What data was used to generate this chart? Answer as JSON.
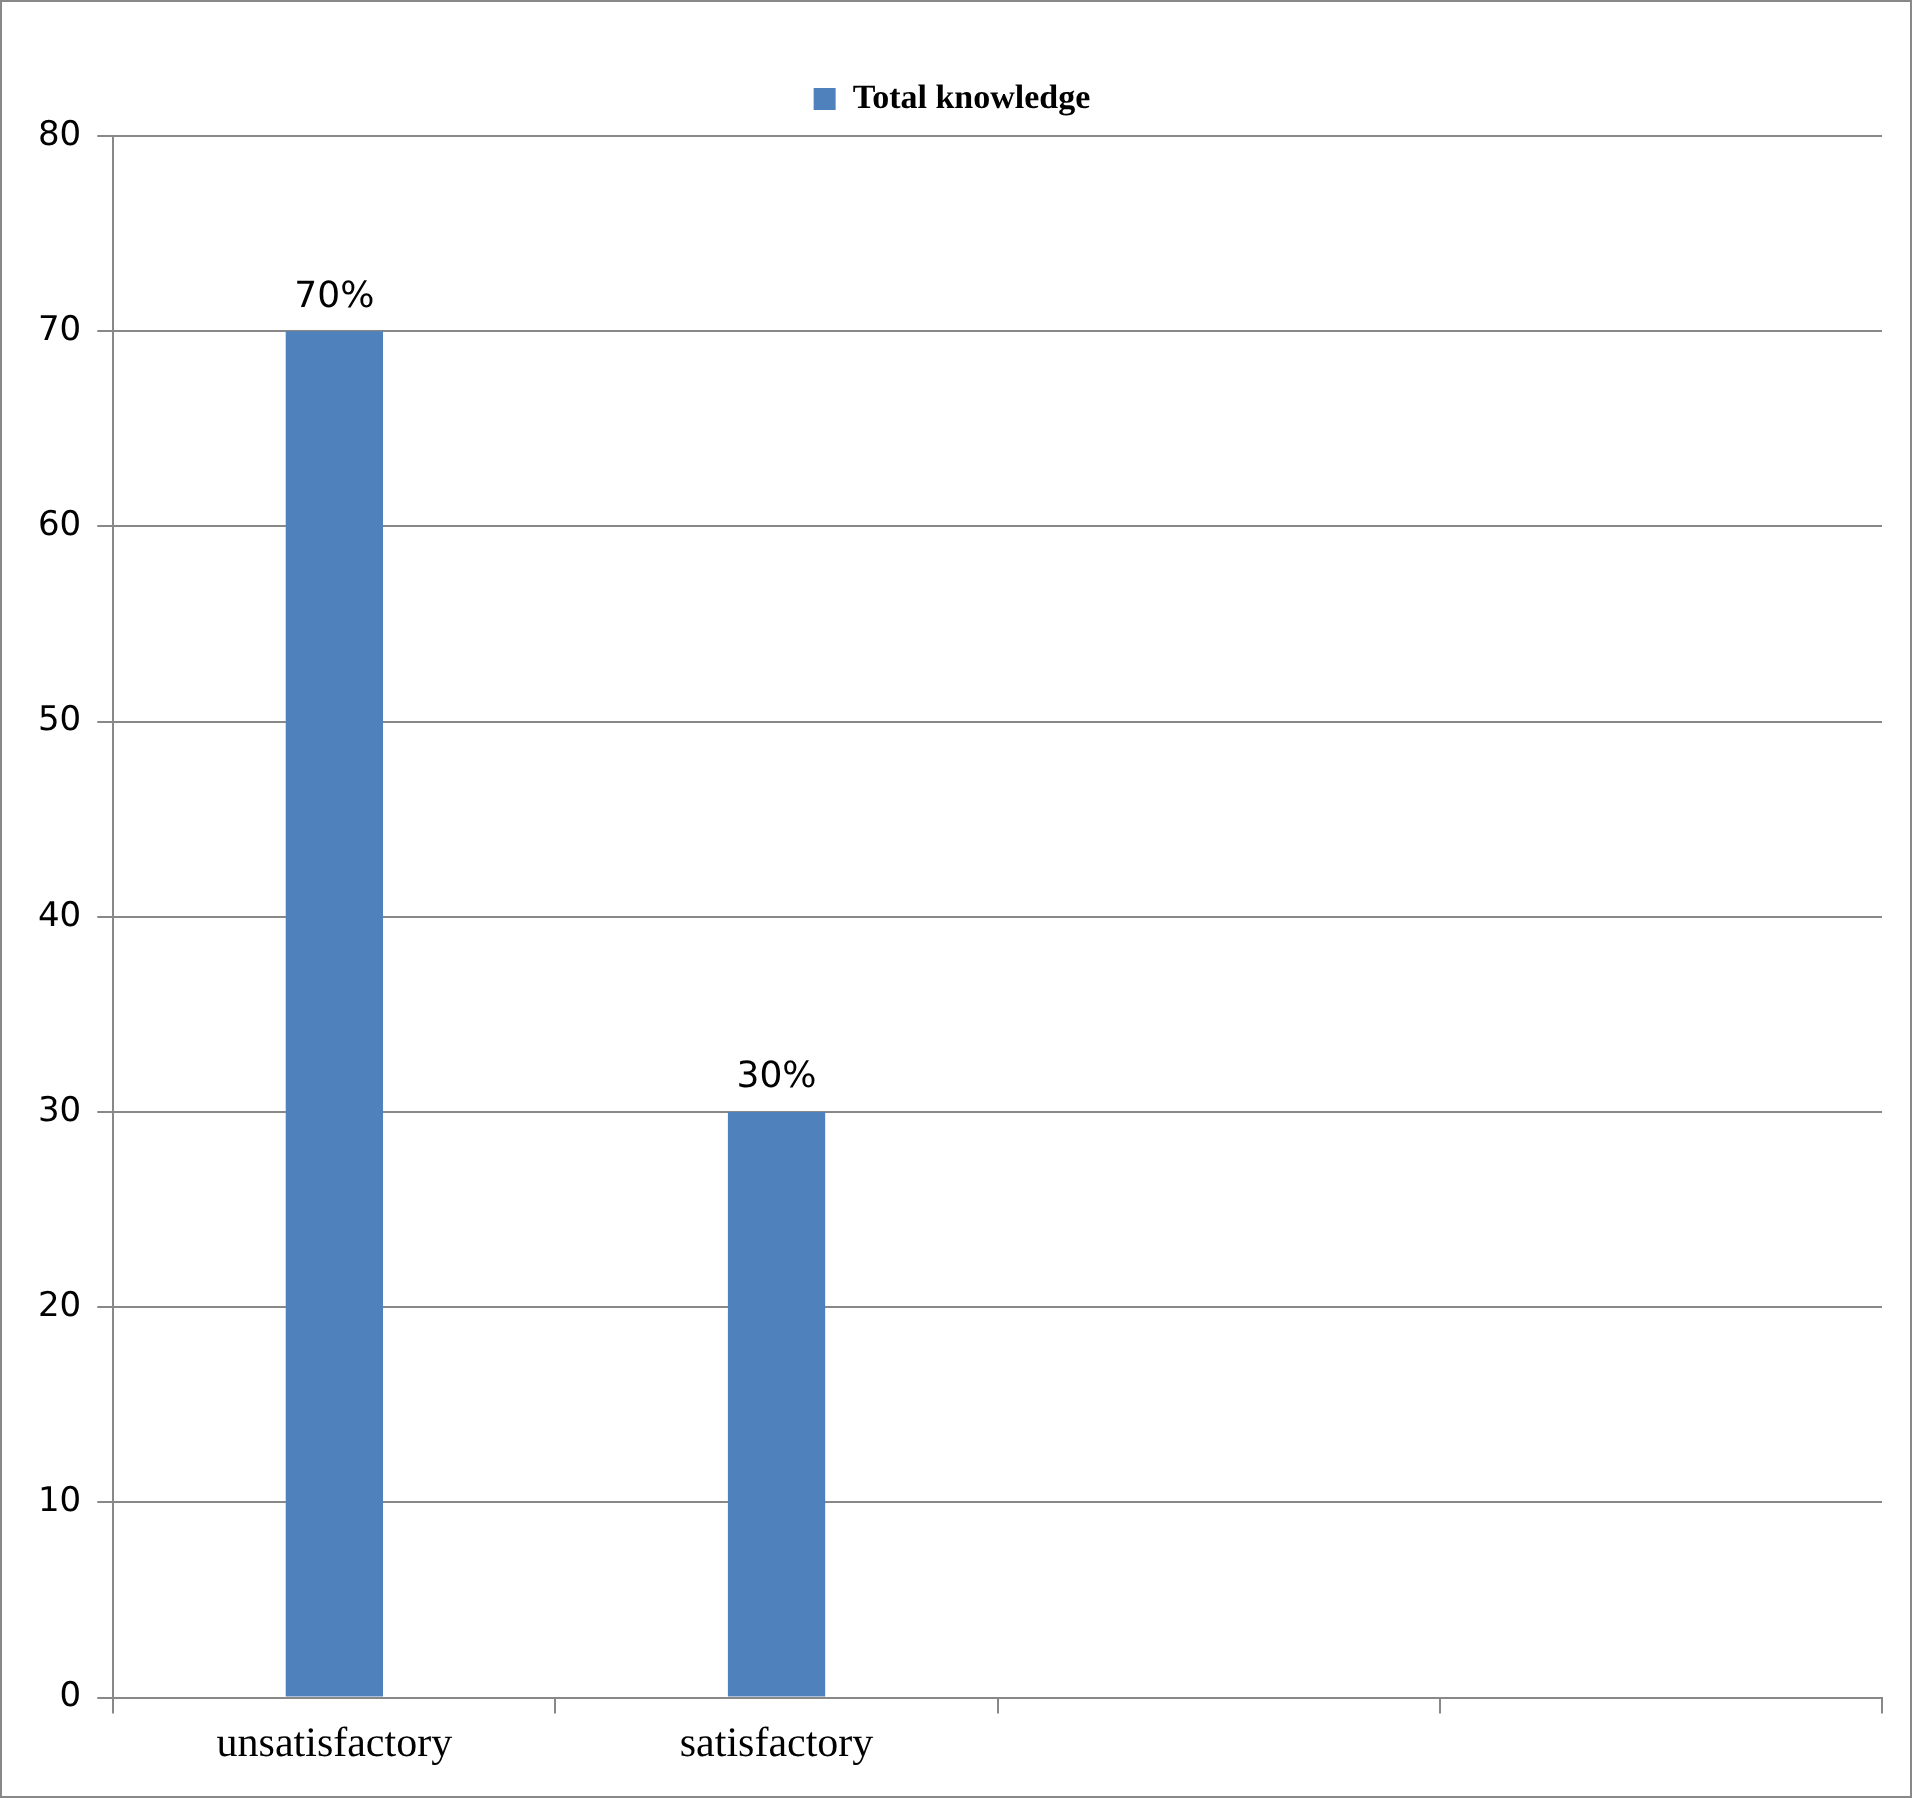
{
  "chart_data": {
    "type": "bar",
    "categories": [
      "unsatisfactory",
      "satisfactory",
      null,
      null
    ],
    "series": [
      {
        "name": "Total knowledge",
        "color": "#4f81bd",
        "values": [
          70,
          30,
          null,
          null
        ],
        "value_labels": [
          "70%",
          "30%",
          null,
          null
        ]
      }
    ],
    "ylim": [
      0,
      80
    ],
    "yticks": [
      0,
      10,
      20,
      30,
      40,
      50,
      60,
      70,
      80
    ],
    "grid": "y",
    "legend": "top"
  }
}
